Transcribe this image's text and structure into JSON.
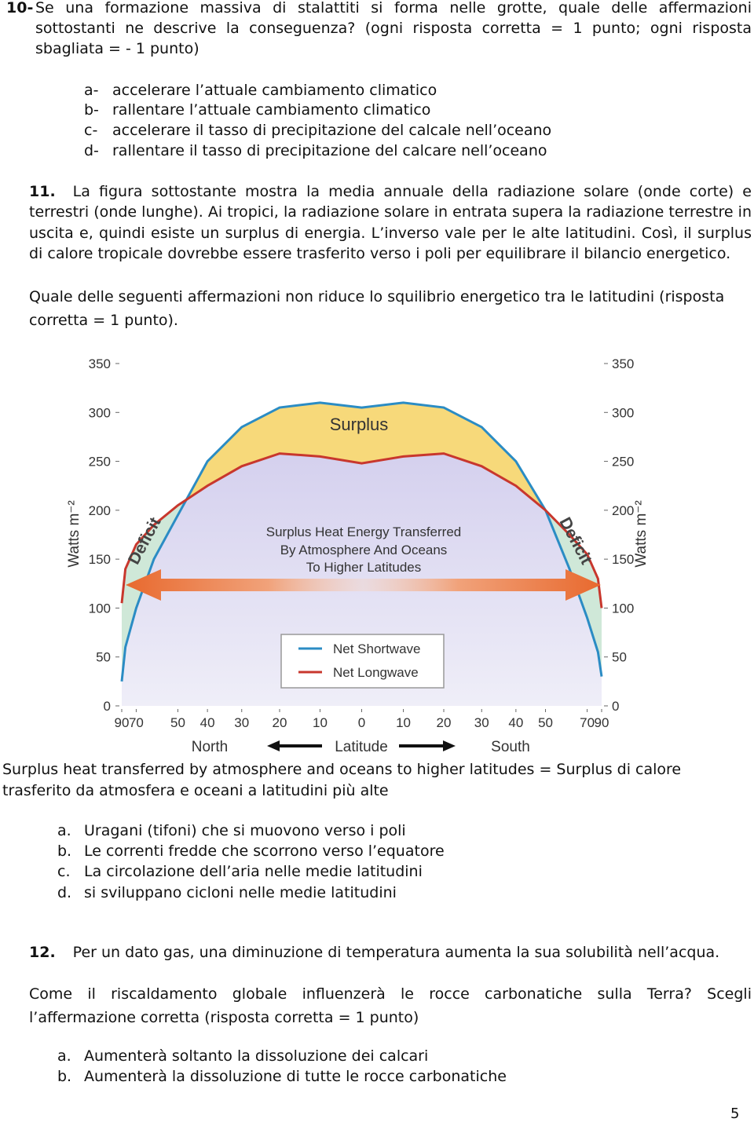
{
  "q10": {
    "number": "10-",
    "text": "Se una formazione massiva di stalattiti  si forma nelle grotte, quale delle affermazioni sottostanti ne descrive la conseguenza? (ogni risposta corretta = 1 punto; ogni risposta sbagliata = - 1 punto)",
    "options": [
      {
        "letter": "a-",
        "text": "accelerare l’attuale cambiamento climatico"
      },
      {
        "letter": "b-",
        "text": "rallentare l’attuale cambiamento climatico"
      },
      {
        "letter": "c-",
        "text": "accelerare il tasso di precipitazione del calcale nell’oceano"
      },
      {
        "letter": "d-",
        "text": "rallentare il tasso di precipitazione del calcare nell’oceano"
      }
    ]
  },
  "q11": {
    "number": "11.",
    "text": "La figura sottostante mostra la media annuale della radiazione solare (onde corte) e terrestri (onde lunghe). Ai tropici, la radiazione solare in entrata supera la radiazione terrestre in uscita e, quindi esiste un surplus di energia. L’inverso vale per le alte latitudini. Così, il surplus di calore tropicale dovrebbe essere trasferito verso i poli per equilibrare il bilancio energetico.",
    "question": "Quale delle seguenti affermazioni non riduce lo squilibrio energetico tra le latitudini (risposta corretta = 1 punto).",
    "caption": "Surplus heat transferred by atmosphere and oceans to higher latitudes = Surplus di calore trasferito da atmosfera e oceani a latitudini più alte",
    "options": [
      {
        "letter": "a.",
        "text": "Uragani (tifoni) che si muovono verso i poli"
      },
      {
        "letter": "b.",
        "text": "Le correnti fredde che scorrono verso l’equatore"
      },
      {
        "letter": "c.",
        "text": "La circolazione dell’aria nelle medie latitudini"
      },
      {
        "letter": "d.",
        "text": "si sviluppano cicloni nelle medie latitudini"
      }
    ]
  },
  "chart_data": {
    "type": "line",
    "x_label": "Latitude",
    "y_label": "Watts m⁻²",
    "annotations": {
      "surplus": "Surplus",
      "deficit_left": "Deficit",
      "deficit_right": "Deficit",
      "transfer": [
        "Surplus Heat Energy Transferred",
        "By Atmosphere And Oceans",
        "To Higher Latitudes"
      ],
      "north": "North",
      "south": "South"
    },
    "x_scale": "sine",
    "x": [
      90,
      80,
      70,
      60,
      50,
      40,
      30,
      20,
      10,
      0,
      -10,
      -20,
      -30,
      -40,
      -50,
      -60,
      -70,
      -80,
      -90
    ],
    "series": [
      {
        "name": "Net Shortwave",
        "color": "#2b8cc4",
        "values": [
          25,
          60,
          100,
          150,
          195,
          250,
          285,
          305,
          310,
          305,
          310,
          305,
          285,
          250,
          200,
          140,
          90,
          55,
          30
        ]
      },
      {
        "name": "Net Longwave",
        "color": "#c8372d",
        "values": [
          105,
          140,
          165,
          185,
          205,
          225,
          245,
          258,
          255,
          248,
          255,
          258,
          245,
          225,
          200,
          175,
          155,
          130,
          100
        ]
      }
    ],
    "xlim": [
      90,
      -90
    ],
    "xticks": [
      90,
      70,
      50,
      40,
      30,
      20,
      10,
      0,
      {
        "value": -10,
        "label": "10"
      },
      {
        "value": -20,
        "label": "20"
      },
      {
        "value": -30,
        "label": "30"
      },
      {
        "value": -40,
        "label": "40"
      },
      {
        "value": -50,
        "label": "50"
      },
      {
        "value": -70,
        "label": "70"
      },
      {
        "value": -90,
        "label": "90"
      }
    ],
    "ylim": [
      0,
      350
    ],
    "yticks": [
      0,
      50,
      100,
      150,
      200,
      250,
      300,
      350
    ],
    "fill_colors": {
      "surplus": "#f7d97a",
      "deficit": "#cfe8d8"
    }
  },
  "q12": {
    "number": "12.",
    "text": "Per un dato gas, una diminuzione di temperatura aumenta la sua solubilità nell’acqua.",
    "question": "Come il riscaldamento globale influenzerà le rocce carbonatiche sulla Terra? Scegli l’affermazione corretta (risposta corretta = 1 punto)",
    "options": [
      {
        "letter": "a.",
        "text": "Aumenterà soltanto la dissoluzione dei calcari"
      },
      {
        "letter": "b.",
        "text": "Aumenterà la dissoluzione di tutte le rocce carbonatiche"
      }
    ]
  },
  "page_number": "5"
}
